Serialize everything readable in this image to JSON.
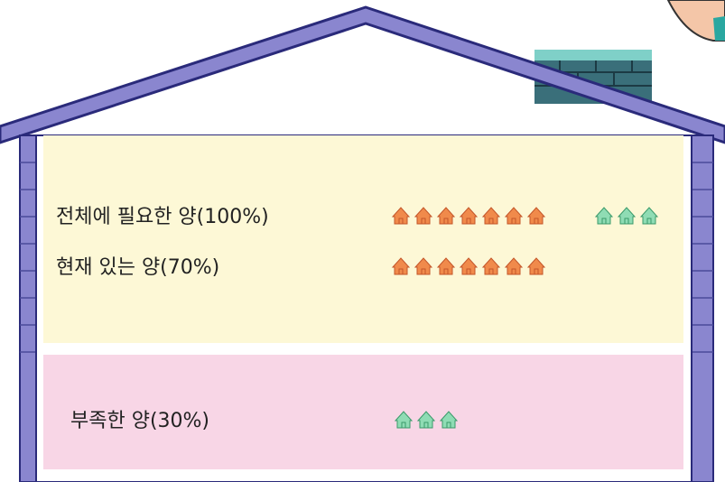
{
  "rows": [
    {
      "label": "전체에 필요한 양(100%)",
      "orange_icons": 7,
      "green_icons": 3
    },
    {
      "label": "현재 있는 양(70%)",
      "orange_icons": 7
    },
    {
      "label": "부족한 양(30%)",
      "green_icons": 3
    }
  ]
}
